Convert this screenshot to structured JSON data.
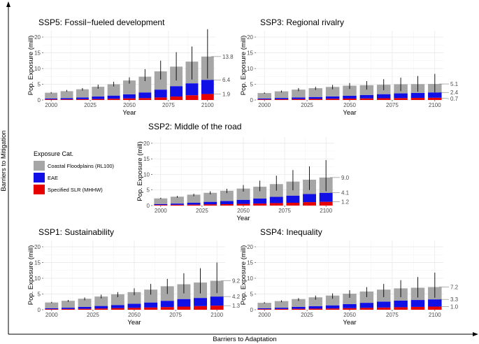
{
  "outer_axes": {
    "x_label": "Barriers to Adaptation",
    "y_label": "Barriers to Mitigation"
  },
  "legend": {
    "title": "Exposure Cat.",
    "items": [
      {
        "label": "Coastal Floodplains (RL100)",
        "color": "#a6a6a6"
      },
      {
        "label": "EAE",
        "color": "#1010e6"
      },
      {
        "label": "Specified SLR (MHHW)",
        "color": "#e60000"
      }
    ]
  },
  "chart_data": [
    {
      "type": "bar",
      "stacked": true,
      "title": "SSP5: Fossil−fueled development",
      "xlabel": "Year",
      "ylabel": "Pop. Exposure (mill)",
      "ylim": [
        0,
        22
      ],
      "yticks": [
        0,
        5,
        10,
        15,
        20
      ],
      "xticks": [
        2000,
        2025,
        2050,
        2075,
        2100
      ],
      "x": [
        2000,
        2010,
        2020,
        2030,
        2040,
        2050,
        2060,
        2070,
        2080,
        2090,
        2100
      ],
      "series": [
        {
          "name": "Specified SLR (MHHW)",
          "values": [
            0.2,
            0.2,
            0.25,
            0.3,
            0.4,
            0.5,
            0.6,
            0.8,
            1.1,
            1.5,
            1.9
          ]
        },
        {
          "name": "EAE",
          "values": [
            0.3,
            0.4,
            0.55,
            0.8,
            1.0,
            1.3,
            1.8,
            2.5,
            3.3,
            3.8,
            4.5
          ]
        },
        {
          "name": "Coastal Floodplains (RL100)",
          "values": [
            1.8,
            2.2,
            2.6,
            3.1,
            3.6,
            4.4,
            5.0,
            5.8,
            6.2,
            6.9,
            7.4
          ]
        }
      ],
      "error_low": [
        2.1,
        2.6,
        3.0,
        3.6,
        4.3,
        5.2,
        6.0,
        6.5,
        6.2,
        6.5,
        6.8
      ],
      "error_high": [
        2.5,
        3.2,
        3.8,
        4.9,
        5.8,
        7.2,
        9.8,
        12.5,
        15.2,
        17.0,
        22.5
      ],
      "end_labels": [
        "13.8",
        "6.4",
        "1.9"
      ],
      "end_label_values": [
        13.8,
        6.4,
        1.9
      ]
    },
    {
      "type": "bar",
      "stacked": true,
      "title": "SSP3: Regional rivalry",
      "xlabel": "Year",
      "ylabel": "Pop. Exposure (mill)",
      "ylim": [
        0,
        22
      ],
      "yticks": [
        0,
        5,
        10,
        15,
        20
      ],
      "xticks": [
        2000,
        2025,
        2050,
        2075,
        2100
      ],
      "x": [
        2000,
        2010,
        2020,
        2030,
        2040,
        2050,
        2060,
        2070,
        2080,
        2090,
        2100
      ],
      "series": [
        {
          "name": "Specified SLR (MHHW)",
          "values": [
            0.2,
            0.25,
            0.3,
            0.35,
            0.4,
            0.45,
            0.5,
            0.55,
            0.6,
            0.65,
            0.7
          ]
        },
        {
          "name": "EAE",
          "values": [
            0.3,
            0.4,
            0.5,
            0.6,
            0.75,
            0.9,
            1.1,
            1.3,
            1.5,
            1.6,
            1.7
          ]
        },
        {
          "name": "Coastal Floodplains (RL100)",
          "values": [
            1.7,
            2.1,
            2.5,
            2.8,
            3.0,
            3.2,
            3.1,
            3.0,
            2.9,
            2.8,
            2.7
          ]
        }
      ],
      "error_low": [
        2.0,
        2.4,
        2.8,
        3.2,
        3.4,
        3.5,
        3.3,
        3.1,
        2.8,
        2.6,
        2.4
      ],
      "error_high": [
        2.4,
        3.0,
        3.8,
        4.2,
        4.8,
        5.4,
        6.0,
        6.6,
        7.1,
        7.6,
        8.3
      ],
      "end_labels": [
        "5.1",
        "2.4",
        "0.7"
      ],
      "end_label_values": [
        5.1,
        2.4,
        0.7
      ]
    },
    {
      "type": "bar",
      "stacked": true,
      "title": "SSP2: Middle of the road",
      "xlabel": "Year",
      "ylabel": "Pop. Exposure (mill)",
      "ylim": [
        0,
        22
      ],
      "yticks": [
        0,
        5,
        10,
        15,
        20
      ],
      "xticks": [
        2000,
        2025,
        2050,
        2075,
        2100
      ],
      "x": [
        2000,
        2010,
        2020,
        2030,
        2040,
        2050,
        2060,
        2070,
        2080,
        2090,
        2100
      ],
      "series": [
        {
          "name": "Specified SLR (MHHW)",
          "values": [
            0.2,
            0.25,
            0.3,
            0.4,
            0.45,
            0.55,
            0.65,
            0.8,
            0.9,
            1.1,
            1.2
          ]
        },
        {
          "name": "EAE",
          "values": [
            0.3,
            0.4,
            0.6,
            0.8,
            1.0,
            1.3,
            1.6,
            2.0,
            2.3,
            2.6,
            2.9
          ]
        },
        {
          "name": "Coastal Floodplains (RL100)",
          "values": [
            1.8,
            2.2,
            2.6,
            2.9,
            3.3,
            3.6,
            3.8,
            4.1,
            4.5,
            4.6,
            4.9
          ]
        }
      ],
      "error_low": [
        2.1,
        2.5,
        3.0,
        3.6,
        4.0,
        4.5,
        4.6,
        4.8,
        4.9,
        5.0,
        4.6
      ],
      "error_high": [
        2.5,
        3.1,
        3.8,
        4.6,
        5.4,
        6.6,
        8.0,
        9.6,
        11.4,
        12.6,
        14.6
      ],
      "end_labels": [
        "9.0",
        "4.1",
        "1.2"
      ],
      "end_label_values": [
        9.0,
        4.1,
        1.2
      ]
    },
    {
      "type": "bar",
      "stacked": true,
      "title": "SSP1: Sustainability",
      "xlabel": "Year",
      "ylabel": "Pop. Exposure (mill)",
      "ylim": [
        0,
        22
      ],
      "yticks": [
        0,
        5,
        10,
        15,
        20
      ],
      "xticks": [
        2000,
        2025,
        2050,
        2075,
        2100
      ],
      "x": [
        2000,
        2010,
        2020,
        2030,
        2040,
        2050,
        2060,
        2070,
        2080,
        2090,
        2100
      ],
      "series": [
        {
          "name": "Specified SLR (MHHW)",
          "values": [
            0.2,
            0.25,
            0.3,
            0.4,
            0.5,
            0.6,
            0.7,
            0.85,
            1.0,
            1.15,
            1.3
          ]
        },
        {
          "name": "EAE",
          "values": [
            0.3,
            0.4,
            0.6,
            0.8,
            1.0,
            1.3,
            1.6,
            2.0,
            2.4,
            2.6,
            2.9
          ]
        },
        {
          "name": "Coastal Floodplains (RL100)",
          "values": [
            1.8,
            2.2,
            2.6,
            3.0,
            3.4,
            3.7,
            4.1,
            4.6,
            4.7,
            4.9,
            5.0
          ]
        }
      ],
      "error_low": [
        2.1,
        2.5,
        3.0,
        3.6,
        4.0,
        4.6,
        4.8,
        5.0,
        5.2,
        5.2,
        5.3
      ],
      "error_high": [
        2.5,
        3.1,
        3.9,
        4.8,
        5.6,
        6.8,
        8.2,
        9.8,
        11.6,
        13.2,
        15.0
      ],
      "end_labels": [
        "9.2",
        "4.2",
        "1.3"
      ],
      "end_label_values": [
        9.2,
        4.2,
        1.3
      ]
    },
    {
      "type": "bar",
      "stacked": true,
      "title": "SSP4: Inequality",
      "xlabel": "Year",
      "ylabel": "Pop. Exposure (mill)",
      "ylim": [
        0,
        22
      ],
      "yticks": [
        0,
        5,
        10,
        15,
        20
      ],
      "xticks": [
        2000,
        2025,
        2050,
        2075,
        2100
      ],
      "x": [
        2000,
        2010,
        2020,
        2030,
        2040,
        2050,
        2060,
        2070,
        2080,
        2090,
        2100
      ],
      "series": [
        {
          "name": "Specified SLR (MHHW)",
          "values": [
            0.2,
            0.25,
            0.3,
            0.35,
            0.4,
            0.5,
            0.6,
            0.7,
            0.8,
            0.9,
            1.0
          ]
        },
        {
          "name": "EAE",
          "values": [
            0.3,
            0.4,
            0.6,
            0.8,
            1.0,
            1.3,
            1.6,
            1.9,
            2.1,
            2.2,
            2.3
          ]
        },
        {
          "name": "Coastal Floodplains (RL100)",
          "values": [
            1.7,
            2.1,
            2.5,
            2.8,
            3.1,
            3.3,
            3.6,
            3.8,
            3.9,
            3.9,
            3.9
          ]
        }
      ],
      "error_low": [
        2.0,
        2.4,
        2.8,
        3.2,
        3.5,
        3.8,
        4.0,
        4.0,
        4.0,
        3.9,
        3.8
      ],
      "error_high": [
        2.4,
        3.0,
        3.7,
        4.5,
        5.2,
        6.2,
        7.2,
        8.2,
        9.4,
        10.4,
        11.8
      ],
      "end_labels": [
        "7.2",
        "3.3",
        "1.0"
      ],
      "end_label_values": [
        7.2,
        3.3,
        1.0
      ]
    }
  ]
}
